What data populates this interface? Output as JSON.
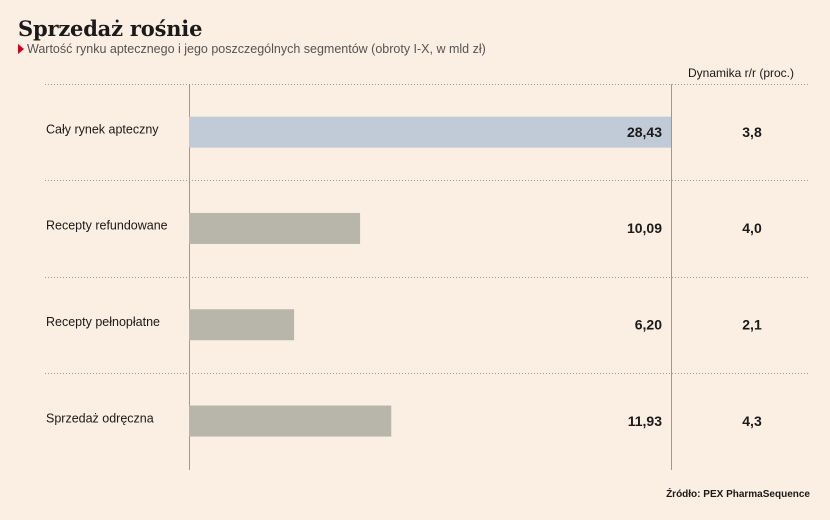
{
  "colors": {
    "background": "#fbeee2",
    "highlight_bar": "#c1cbd7",
    "default_bar": "#b8b5ab",
    "marker": "#d0021b",
    "divider": "#a09890"
  },
  "header": {
    "title": "Sprzedaż rośnie",
    "subtitle": "Wartość rynku aptecznego i jego poszczególnych segmentów (obroty I-X, w mld zł)",
    "dynamics_header": "Dynamika r/r (proc.)"
  },
  "footer": {
    "source": "Źródło: PEX PharmaSequence"
  },
  "chart_data": {
    "type": "bar",
    "orientation": "horizontal",
    "title": "Sprzedaż rośnie",
    "subtitle": "Wartość rynku aptecznego i jego poszczególnych segmentów (obroty I-X, w mld zł)",
    "categories": [
      "Cały rynek apteczny",
      "Recepty refundowane",
      "Recepty pełnopłatne",
      "Sprzedaż odręczna"
    ],
    "values": [
      28.43,
      10.09,
      6.2,
      11.93
    ],
    "value_labels": [
      "28,43",
      "10,09",
      "6,20",
      "11,93"
    ],
    "highlight_index": 0,
    "xlim": [
      0,
      28.43
    ],
    "dynamics": {
      "label": "Dynamika r/r (proc.)",
      "values": [
        3.8,
        4.0,
        2.1,
        4.3
      ],
      "value_labels": [
        "3,8",
        "4,0",
        "2,1",
        "4,3"
      ]
    },
    "grid": false,
    "legend": "none"
  }
}
